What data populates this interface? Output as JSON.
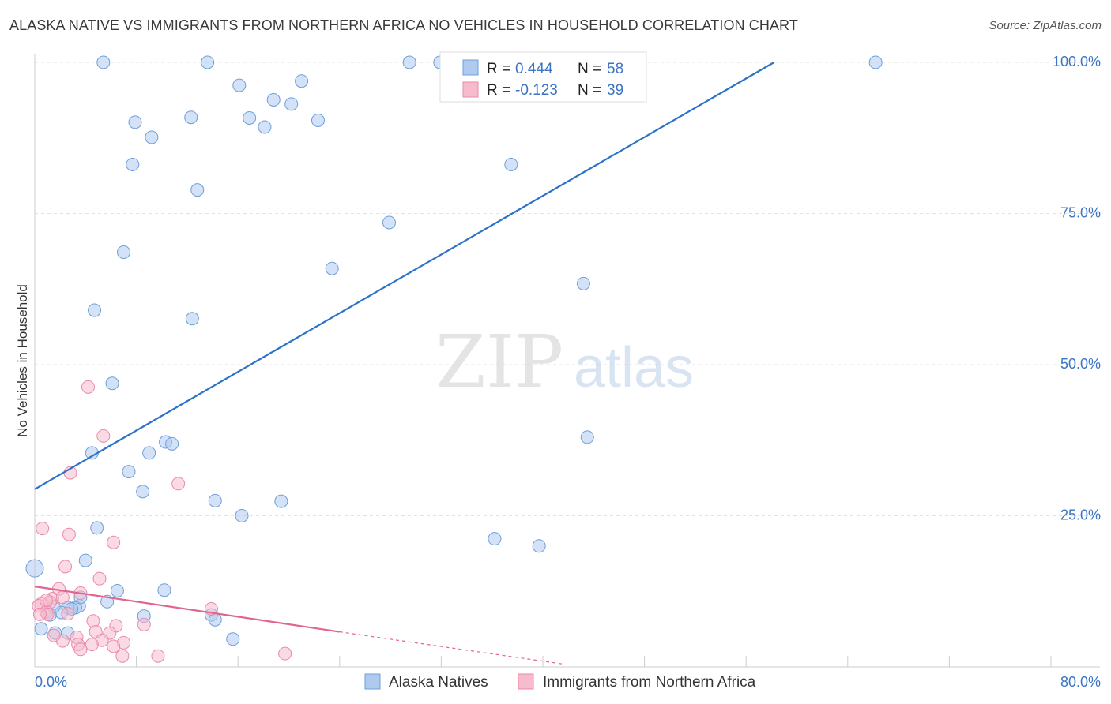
{
  "chart_data": {
    "type": "scatter",
    "title": "ALASKA NATIVE VS IMMIGRANTS FROM NORTHERN AFRICA NO VEHICLES IN HOUSEHOLD CORRELATION CHART",
    "source": "Source: ZipAtlas.com",
    "xlabel": "",
    "ylabel": "No Vehicles in Household",
    "xlim": [
      0,
      80
    ],
    "ylim": [
      0,
      100
    ],
    "x_tick_labels": [
      "0.0%",
      "80.0%"
    ],
    "y_ticks": [
      25,
      50,
      75,
      100
    ],
    "y_tick_labels": [
      "25.0%",
      "50.0%",
      "75.0%",
      "100.0%"
    ],
    "grid": true,
    "watermark": "ZIPatlas",
    "colors": {
      "blue_fill": "#aecbef",
      "blue_stroke": "#6d9fda",
      "blue_line": "#2c72c8",
      "pink_fill": "#f6bccd",
      "pink_stroke": "#e98aa8",
      "pink_line": "#e0658f",
      "stat_color": "#3b74c4"
    },
    "legend_stats": [
      {
        "r_label": "R = ",
        "r_value": "0.444",
        "n_label": "N = ",
        "n_value": "58"
      },
      {
        "r_label": "R = ",
        "r_value": "-0.123",
        "n_label": "N = ",
        "n_value": "39"
      }
    ],
    "series": [
      {
        "name": "Alaska Natives",
        "trend": {
          "x0": 0,
          "y0": 29.4,
          "x1": 58.2,
          "y1": 100
        },
        "points": [
          [
            5.4,
            100
          ],
          [
            13.6,
            100
          ],
          [
            29.5,
            100
          ],
          [
            31.9,
            100
          ],
          [
            66.2,
            100
          ],
          [
            16.1,
            96.2
          ],
          [
            21.0,
            96.9
          ],
          [
            18.8,
            93.8
          ],
          [
            20.2,
            93.1
          ],
          [
            12.3,
            90.9
          ],
          [
            16.9,
            90.8
          ],
          [
            7.9,
            90.1
          ],
          [
            22.3,
            90.4
          ],
          [
            18.1,
            89.3
          ],
          [
            9.2,
            87.6
          ],
          [
            7.7,
            83.1
          ],
          [
            37.5,
            83.1
          ],
          [
            12.8,
            78.9
          ],
          [
            27.9,
            73.5
          ],
          [
            7.0,
            68.6
          ],
          [
            23.4,
            65.9
          ],
          [
            43.2,
            63.4
          ],
          [
            4.7,
            59.0
          ],
          [
            12.4,
            57.6
          ],
          [
            6.1,
            46.9
          ],
          [
            43.5,
            38.0
          ],
          [
            10.3,
            37.2
          ],
          [
            10.8,
            36.9
          ],
          [
            4.5,
            35.4
          ],
          [
            9.0,
            35.4
          ],
          [
            7.4,
            32.3
          ],
          [
            8.5,
            29.0
          ],
          [
            14.2,
            27.5
          ],
          [
            19.4,
            27.4
          ],
          [
            16.3,
            25.0
          ],
          [
            4.9,
            23.0
          ],
          [
            36.2,
            21.2
          ],
          [
            39.7,
            20.0
          ],
          [
            0.0,
            16.3
          ],
          [
            4.0,
            17.6
          ],
          [
            6.5,
            12.6
          ],
          [
            10.2,
            12.7
          ],
          [
            5.7,
            10.8
          ],
          [
            3.5,
            10.1
          ],
          [
            3.2,
            9.8
          ],
          [
            2.6,
            9.8
          ],
          [
            2.9,
            9.6
          ],
          [
            2.1,
            9.0
          ],
          [
            1.2,
            8.6
          ],
          [
            8.6,
            8.4
          ],
          [
            13.9,
            8.6
          ],
          [
            14.2,
            7.8
          ],
          [
            0.5,
            6.3
          ],
          [
            1.6,
            5.6
          ],
          [
            2.6,
            5.6
          ],
          [
            15.6,
            4.6
          ],
          [
            3.6,
            11.5
          ],
          [
            1.5,
            10.0
          ]
        ]
      },
      {
        "name": "Immigrants from Northern Africa",
        "trend": {
          "x0": 0,
          "y0": 13.3,
          "x1": 24.0,
          "y1": 5.8,
          "dash_x1": 41.5,
          "dash_y1": 0.5
        },
        "points": [
          [
            4.2,
            46.3
          ],
          [
            5.4,
            38.2
          ],
          [
            2.8,
            32.1
          ],
          [
            11.3,
            30.3
          ],
          [
            0.6,
            22.9
          ],
          [
            2.7,
            21.9
          ],
          [
            6.2,
            20.6
          ],
          [
            2.4,
            16.6
          ],
          [
            5.1,
            14.6
          ],
          [
            1.4,
            11.3
          ],
          [
            3.6,
            12.2
          ],
          [
            1.9,
            12.9
          ],
          [
            2.2,
            11.5
          ],
          [
            1.2,
            10.7
          ],
          [
            0.5,
            10.4
          ],
          [
            0.3,
            10.1
          ],
          [
            13.9,
            9.6
          ],
          [
            0.9,
            9.1
          ],
          [
            1.0,
            8.7
          ],
          [
            2.6,
            8.8
          ],
          [
            0.4,
            8.7
          ],
          [
            4.6,
            7.6
          ],
          [
            8.6,
            7.0
          ],
          [
            6.4,
            6.8
          ],
          [
            4.8,
            5.8
          ],
          [
            5.9,
            5.6
          ],
          [
            3.3,
            4.9
          ],
          [
            5.3,
            4.4
          ],
          [
            2.2,
            4.3
          ],
          [
            3.4,
            3.7
          ],
          [
            7.0,
            4.0
          ],
          [
            6.2,
            3.4
          ],
          [
            4.5,
            3.7
          ],
          [
            9.7,
            1.8
          ],
          [
            6.9,
            1.8
          ],
          [
            19.7,
            2.2
          ],
          [
            3.6,
            2.9
          ],
          [
            1.5,
            5.2
          ],
          [
            0.9,
            11.0
          ]
        ]
      }
    ]
  }
}
